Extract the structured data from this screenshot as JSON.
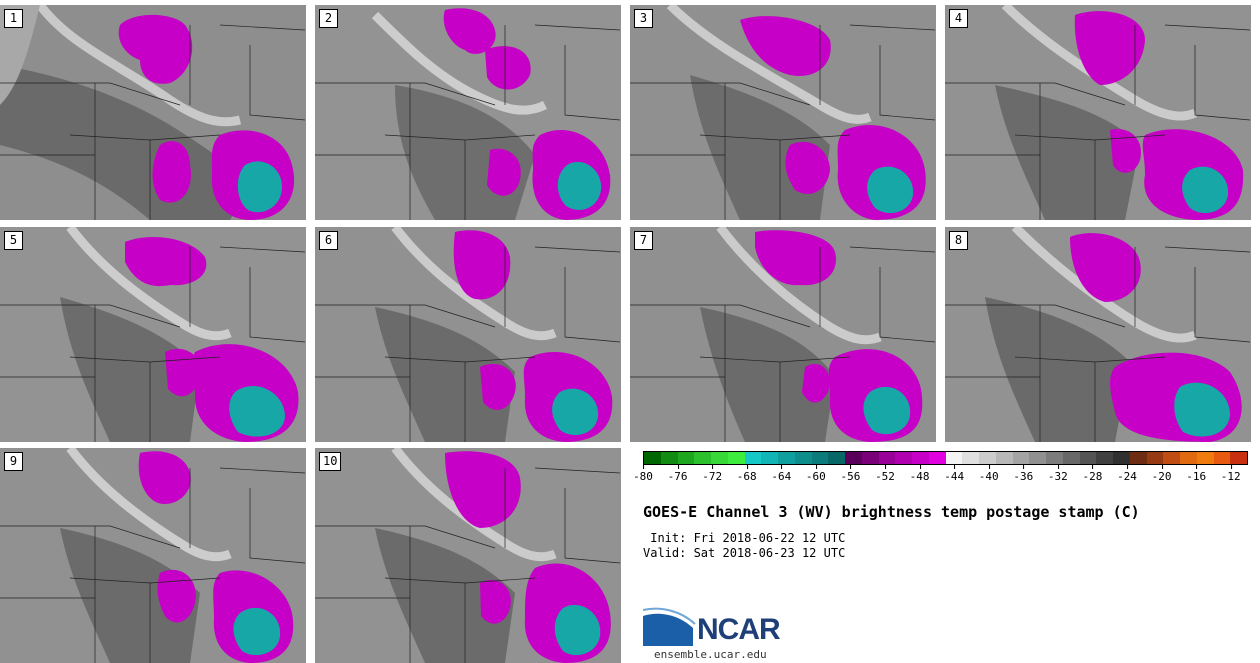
{
  "panels": [
    {
      "label": "1"
    },
    {
      "label": "2"
    },
    {
      "label": "3"
    },
    {
      "label": "4"
    },
    {
      "label": "5"
    },
    {
      "label": "6"
    },
    {
      "label": "7"
    },
    {
      "label": "8"
    },
    {
      "label": "9"
    },
    {
      "label": "10"
    }
  ],
  "colorbar": {
    "ticks": [
      "-80",
      "-76",
      "-72",
      "-68",
      "-64",
      "-60",
      "-56",
      "-52",
      "-48",
      "-44",
      "-40",
      "-36",
      "-32",
      "-28",
      "-24",
      "-20",
      "-16",
      "-12"
    ],
    "range": [
      -80,
      -10
    ],
    "colors": [
      "#006600",
      "#128b12",
      "#1fa61f",
      "#2dc02d",
      "#39d839",
      "#3eec3e",
      "#16c8c8",
      "#12b5b5",
      "#109f9f",
      "#0e8d8d",
      "#0b7b7b",
      "#086868",
      "#5a005a",
      "#7a007a",
      "#980098",
      "#b000b0",
      "#c600c6",
      "#e000e0",
      "#f4f4f4",
      "#e0e0e0",
      "#cccccc",
      "#b8b8b8",
      "#a4a4a4",
      "#909090",
      "#7c7c7c",
      "#686868",
      "#545454",
      "#404040",
      "#303030",
      "#6e2c12",
      "#963a14",
      "#c04e14",
      "#e06a10",
      "#f07c10",
      "#e85a10",
      "#c83010"
    ]
  },
  "title": "GOES-E Channel 3 (WV) brightness temp postage stamp (C)",
  "init_line": " Init: Fri 2018-06-22 12 UTC",
  "valid_line": "Valid: Sat 2018-06-23 12 UTC",
  "logo": {
    "name": "NCAR",
    "url": "ensemble.ucar.edu"
  }
}
